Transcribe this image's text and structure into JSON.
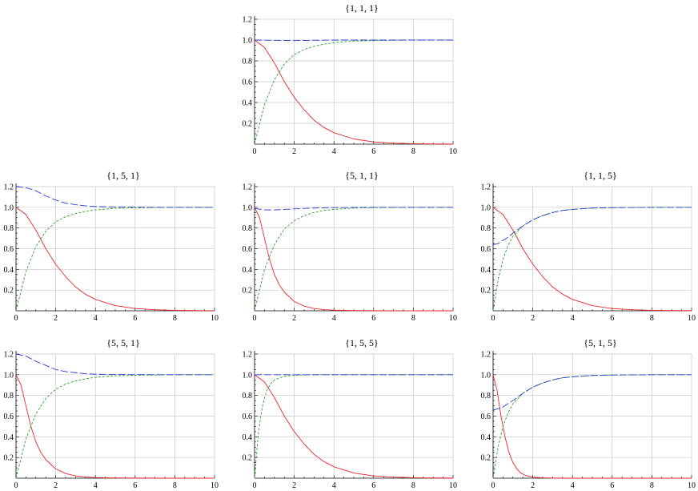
{
  "chart_data": [
    {
      "type": "line",
      "title": "{1, 1, 1}",
      "xlim": [
        0,
        10
      ],
      "ylim": [
        0,
        1.2
      ],
      "xticks": [
        "0",
        "2",
        "4",
        "6",
        "8",
        "10"
      ],
      "yticks": [
        "0.2",
        "0.4",
        "0.6",
        "0.8",
        "1.0",
        "1.2"
      ],
      "grid": true,
      "series": [
        {
          "color": "#e8262a",
          "dash": "solid",
          "x": [
            0,
            0.5,
            1,
            1.5,
            2,
            2.5,
            3,
            3.5,
            4,
            5,
            6,
            7,
            8,
            9,
            10
          ],
          "y": [
            1.0,
            0.93,
            0.78,
            0.6,
            0.45,
            0.33,
            0.23,
            0.16,
            0.11,
            0.05,
            0.022,
            0.01,
            0.004,
            0.002,
            0.001
          ]
        },
        {
          "color": "#2aa52a",
          "dash": "short",
          "x": [
            0,
            0.5,
            1,
            1.5,
            2,
            2.5,
            3,
            3.5,
            4,
            5,
            6,
            7,
            8,
            9,
            10
          ],
          "y": [
            0.0,
            0.38,
            0.62,
            0.77,
            0.86,
            0.91,
            0.94,
            0.96,
            0.975,
            0.99,
            0.995,
            0.998,
            1.0,
            1.0,
            1.0
          ]
        },
        {
          "color": "#2a3ad6",
          "dash": "long",
          "x": [
            0,
            2,
            4,
            6,
            8,
            10
          ],
          "y": [
            1.0,
            0.995,
            1.0,
            1.0,
            1.0,
            1.0
          ]
        }
      ]
    },
    {
      "type": "line",
      "title": "{1, 5, 1}",
      "xlim": [
        0,
        10
      ],
      "ylim": [
        0,
        1.2
      ],
      "xticks": [
        "0",
        "2",
        "4",
        "6",
        "8",
        "10"
      ],
      "yticks": [
        "0.2",
        "0.4",
        "0.6",
        "0.8",
        "1.0",
        "1.2"
      ],
      "grid": true,
      "series": [
        {
          "color": "#e8262a",
          "dash": "solid",
          "x": [
            0,
            0.5,
            1,
            1.5,
            2,
            2.5,
            3,
            3.5,
            4,
            5,
            6,
            7,
            8,
            9,
            10
          ],
          "y": [
            1.0,
            0.93,
            0.78,
            0.6,
            0.45,
            0.33,
            0.23,
            0.16,
            0.11,
            0.05,
            0.022,
            0.01,
            0.004,
            0.002,
            0.001
          ]
        },
        {
          "color": "#2aa52a",
          "dash": "short",
          "x": [
            0,
            0.5,
            1,
            1.5,
            2,
            2.5,
            3,
            3.5,
            4,
            5,
            6,
            7,
            8,
            9,
            10
          ],
          "y": [
            0.0,
            0.38,
            0.62,
            0.77,
            0.86,
            0.91,
            0.94,
            0.96,
            0.975,
            0.99,
            0.995,
            0.998,
            1.0,
            1.0,
            1.0
          ]
        },
        {
          "color": "#2a3ad6",
          "dash": "long",
          "x": [
            0,
            0.5,
            1,
            1.5,
            2,
            2.5,
            3,
            3.5,
            4,
            5,
            6,
            8,
            10
          ],
          "y": [
            1.2,
            1.19,
            1.16,
            1.11,
            1.07,
            1.04,
            1.025,
            1.015,
            1.008,
            1.003,
            1.001,
            1.0,
            1.0
          ]
        }
      ]
    },
    {
      "type": "line",
      "title": "{5, 1, 1}",
      "xlim": [
        0,
        10
      ],
      "ylim": [
        0,
        1.2
      ],
      "xticks": [
        "0",
        "2",
        "4",
        "6",
        "8",
        "10"
      ],
      "yticks": [
        "0.2",
        "0.4",
        "0.6",
        "0.8",
        "1.0",
        "1.2"
      ],
      "grid": true,
      "series": [
        {
          "color": "#e8262a",
          "dash": "solid",
          "x": [
            0,
            0.25,
            0.5,
            0.75,
            1,
            1.25,
            1.5,
            2,
            2.5,
            3,
            3.5,
            4,
            5,
            6,
            8,
            10
          ],
          "y": [
            1.0,
            0.9,
            0.7,
            0.5,
            0.35,
            0.25,
            0.18,
            0.09,
            0.045,
            0.022,
            0.011,
            0.006,
            0.002,
            0.001,
            0.0,
            0.0
          ]
        },
        {
          "color": "#2aa52a",
          "dash": "short",
          "x": [
            0,
            0.5,
            1,
            1.5,
            2,
            2.5,
            3,
            3.5,
            4,
            5,
            6,
            8,
            10
          ],
          "y": [
            0.0,
            0.4,
            0.64,
            0.79,
            0.87,
            0.92,
            0.95,
            0.97,
            0.98,
            0.993,
            0.997,
            1.0,
            1.0
          ]
        },
        {
          "color": "#2a3ad6",
          "dash": "long",
          "x": [
            0,
            0.5,
            1,
            1.5,
            2,
            3,
            4,
            6,
            8,
            10
          ],
          "y": [
            0.99,
            0.975,
            0.975,
            0.98,
            0.985,
            0.993,
            0.997,
            1.0,
            1.0,
            1.0
          ]
        }
      ]
    },
    {
      "type": "line",
      "title": "{1, 1, 5}",
      "xlim": [
        0,
        10
      ],
      "ylim": [
        0,
        1.2
      ],
      "xticks": [
        "0",
        "2",
        "4",
        "6",
        "8",
        "10"
      ],
      "yticks": [
        "0.2",
        "0.4",
        "0.6",
        "0.8",
        "1.0",
        "1.2"
      ],
      "grid": true,
      "series": [
        {
          "color": "#e8262a",
          "dash": "solid",
          "x": [
            0,
            0.5,
            1,
            1.5,
            2,
            2.5,
            3,
            3.5,
            4,
            5,
            6,
            7,
            8,
            9,
            10
          ],
          "y": [
            1.0,
            0.93,
            0.78,
            0.6,
            0.45,
            0.33,
            0.23,
            0.16,
            0.11,
            0.05,
            0.022,
            0.01,
            0.004,
            0.002,
            0.001
          ]
        },
        {
          "color": "#2aa52a",
          "dash": "short",
          "x": [
            0,
            0.25,
            0.5,
            0.75,
            1,
            1.5,
            2,
            2.5,
            3,
            3.5,
            4,
            5,
            6,
            8,
            10
          ],
          "y": [
            0.0,
            0.3,
            0.5,
            0.63,
            0.72,
            0.82,
            0.88,
            0.92,
            0.95,
            0.97,
            0.98,
            0.993,
            0.997,
            1.0,
            1.0
          ]
        },
        {
          "color": "#2a3ad6",
          "dash": "long",
          "x": [
            0,
            0.25,
            0.5,
            0.75,
            1,
            1.5,
            2,
            2.5,
            3,
            3.5,
            4,
            5,
            6,
            8,
            10
          ],
          "y": [
            0.64,
            0.65,
            0.68,
            0.71,
            0.75,
            0.82,
            0.88,
            0.92,
            0.95,
            0.97,
            0.98,
            0.993,
            0.997,
            1.0,
            1.0
          ]
        }
      ]
    },
    {
      "type": "line",
      "title": "{5, 5, 1}",
      "xlim": [
        0,
        10
      ],
      "ylim": [
        0,
        1.2
      ],
      "xticks": [
        "0",
        "2",
        "4",
        "6",
        "8",
        "10"
      ],
      "yticks": [
        "0.2",
        "0.4",
        "0.6",
        "0.8",
        "1.0",
        "1.2"
      ],
      "grid": true,
      "series": [
        {
          "color": "#e8262a",
          "dash": "solid",
          "x": [
            0,
            0.25,
            0.5,
            0.75,
            1,
            1.25,
            1.5,
            2,
            2.5,
            3,
            3.5,
            4,
            5,
            6,
            8,
            10
          ],
          "y": [
            1.0,
            0.9,
            0.7,
            0.5,
            0.35,
            0.25,
            0.18,
            0.09,
            0.045,
            0.022,
            0.011,
            0.006,
            0.002,
            0.001,
            0.0,
            0.0
          ]
        },
        {
          "color": "#2aa52a",
          "dash": "short",
          "x": [
            0,
            0.5,
            1,
            1.5,
            2,
            2.5,
            3,
            3.5,
            4,
            5,
            6,
            8,
            10
          ],
          "y": [
            0.0,
            0.38,
            0.62,
            0.77,
            0.86,
            0.91,
            0.94,
            0.96,
            0.975,
            0.99,
            0.995,
            1.0,
            1.0
          ]
        },
        {
          "color": "#2a3ad6",
          "dash": "long",
          "x": [
            0,
            0.5,
            1,
            1.5,
            2,
            2.5,
            3,
            3.5,
            4,
            5,
            6,
            8,
            10
          ],
          "y": [
            1.2,
            1.18,
            1.13,
            1.09,
            1.05,
            1.03,
            1.02,
            1.01,
            1.005,
            1.002,
            1.001,
            1.0,
            1.0
          ]
        }
      ]
    },
    {
      "type": "line",
      "title": "{1, 5, 5}",
      "xlim": [
        0,
        10
      ],
      "ylim": [
        0,
        1.2
      ],
      "xticks": [
        "0",
        "2",
        "4",
        "6",
        "8",
        "10"
      ],
      "yticks": [
        "0.2",
        "0.4",
        "0.6",
        "0.8",
        "1.0",
        "1.2"
      ],
      "grid": true,
      "series": [
        {
          "color": "#e8262a",
          "dash": "solid",
          "x": [
            0,
            0.5,
            1,
            1.5,
            2,
            2.5,
            3,
            3.5,
            4,
            5,
            6,
            7,
            8,
            9,
            10
          ],
          "y": [
            1.0,
            0.93,
            0.78,
            0.6,
            0.45,
            0.33,
            0.23,
            0.16,
            0.11,
            0.05,
            0.022,
            0.01,
            0.004,
            0.002,
            0.001
          ]
        },
        {
          "color": "#2aa52a",
          "dash": "short",
          "x": [
            0,
            0.2,
            0.4,
            0.6,
            0.8,
            1,
            1.5,
            2,
            3,
            4,
            6,
            8,
            10
          ],
          "y": [
            0.0,
            0.45,
            0.7,
            0.84,
            0.91,
            0.95,
            0.985,
            0.995,
            1.0,
            1.0,
            1.0,
            1.0,
            1.0
          ]
        },
        {
          "color": "#2a3ad6",
          "dash": "long",
          "x": [
            0,
            2,
            4,
            6,
            8,
            10
          ],
          "y": [
            1.0,
            1.0,
            1.0,
            1.0,
            1.0,
            1.0
          ]
        }
      ]
    },
    {
      "type": "line",
      "title": "{5, 1, 5}",
      "xlim": [
        0,
        10
      ],
      "ylim": [
        0,
        1.2
      ],
      "xticks": [
        "0",
        "2",
        "4",
        "6",
        "8",
        "10"
      ],
      "yticks": [
        "0.2",
        "0.4",
        "0.6",
        "0.8",
        "1.0",
        "1.2"
      ],
      "grid": true,
      "series": [
        {
          "color": "#e8262a",
          "dash": "solid",
          "x": [
            0,
            0.2,
            0.4,
            0.6,
            0.8,
            1,
            1.2,
            1.4,
            1.6,
            2,
            2.5,
            3,
            4,
            6,
            8,
            10
          ],
          "y": [
            1.0,
            0.85,
            0.6,
            0.4,
            0.25,
            0.15,
            0.09,
            0.05,
            0.03,
            0.01,
            0.003,
            0.001,
            0.0,
            0.0,
            0.0,
            0.0
          ]
        },
        {
          "color": "#2aa52a",
          "dash": "short",
          "x": [
            0,
            0.25,
            0.5,
            0.75,
            1,
            1.5,
            2,
            2.5,
            3,
            3.5,
            4,
            5,
            6,
            8,
            10
          ],
          "y": [
            0.0,
            0.3,
            0.5,
            0.63,
            0.72,
            0.82,
            0.88,
            0.92,
            0.95,
            0.97,
            0.98,
            0.993,
            0.997,
            1.0,
            1.0
          ]
        },
        {
          "color": "#2a3ad6",
          "dash": "long",
          "x": [
            0,
            0.25,
            0.5,
            0.75,
            1,
            1.5,
            2,
            2.5,
            3,
            3.5,
            4,
            5,
            6,
            8,
            10
          ],
          "y": [
            0.66,
            0.67,
            0.69,
            0.72,
            0.75,
            0.82,
            0.88,
            0.92,
            0.95,
            0.97,
            0.98,
            0.993,
            0.997,
            1.0,
            1.0
          ]
        }
      ]
    }
  ]
}
